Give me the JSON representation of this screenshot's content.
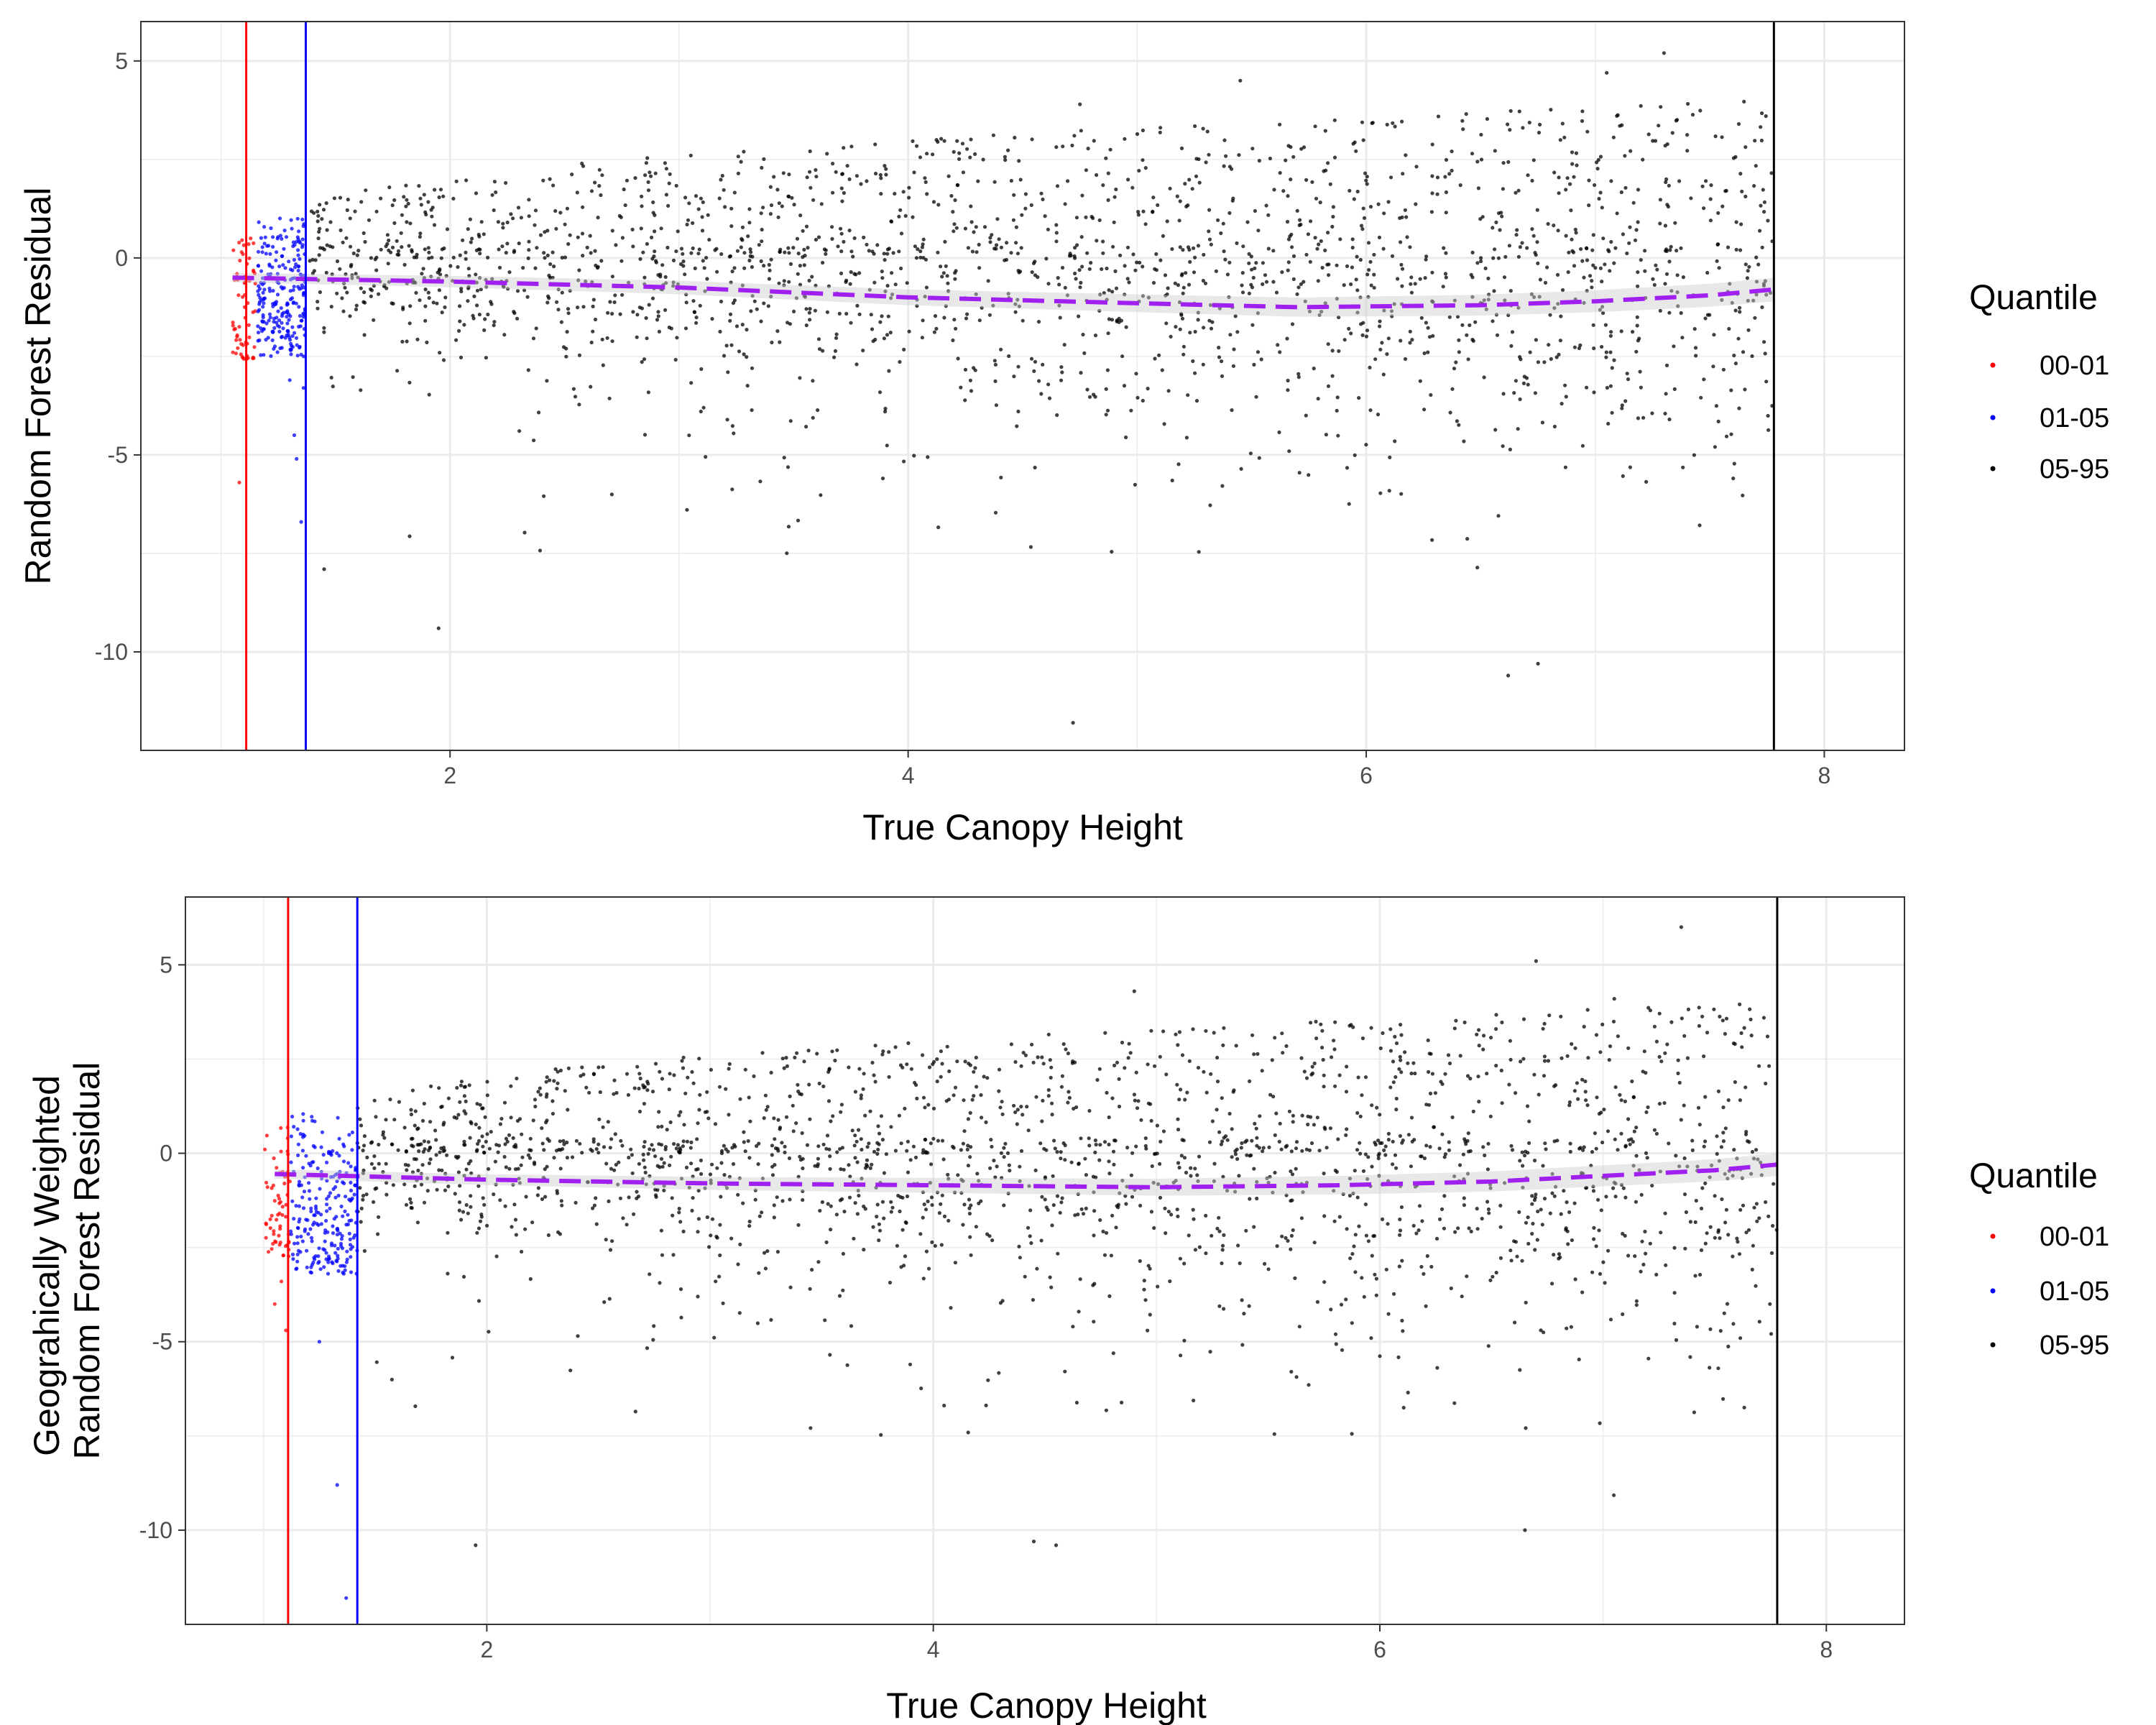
{
  "chart_data": [
    {
      "type": "scatter",
      "xlabel": "True Canopy Height",
      "ylabel": [
        "Random Forest Residual"
      ],
      "xlim": [
        0.65,
        8.35
      ],
      "ylim": [
        -12.5,
        6.0
      ],
      "x_ticks": [
        2,
        4,
        6,
        8
      ],
      "x_tick_labels": [
        "2",
        "4",
        "6",
        "8"
      ],
      "y_ticks": [
        5,
        0,
        -5,
        -10
      ],
      "y_tick_labels": [
        "5",
        "0",
        "-5",
        "-10"
      ],
      "grid": true,
      "legend": {
        "title": "Quantile",
        "position": "right",
        "entries": [
          "00-01",
          "01-05",
          "05-95"
        ]
      },
      "series": [
        {
          "name": "00-01",
          "color": "#ff0000",
          "x_range": [
            1.05,
            1.15
          ],
          "y_range": [
            -2.6,
            1.0
          ],
          "outliers": [
            [
              1.08,
              -5.7
            ]
          ],
          "count": 60
        },
        {
          "name": "01-05",
          "color": "#0000ff",
          "x_range": [
            1.16,
            1.37
          ],
          "y_range": [
            -2.5,
            1.1
          ],
          "outliers": [
            [
              1.3,
              -3.1
            ],
            [
              1.32,
              -4.5
            ],
            [
              1.33,
              -5.1
            ],
            [
              1.35,
              -6.7
            ],
            [
              1.36,
              -3.3
            ]
          ],
          "count": 230
        },
        {
          "name": "05-95",
          "color": "#000000",
          "x_range": [
            1.38,
            7.78
          ],
          "count": 2000,
          "notable_points": [
            [
              1.45,
              -7.9
            ],
            [
              1.95,
              -9.4
            ],
            [
              4.72,
              -11.8
            ],
            [
              6.62,
              -10.6
            ],
            [
              6.75,
              -10.3
            ],
            [
              7.3,
              5.2
            ],
            [
              5.45,
              4.5
            ],
            [
              4.75,
              3.9
            ],
            [
              7.05,
              4.7
            ]
          ]
        }
      ],
      "trend": {
        "color": "#a020f0",
        "style": "dashed",
        "x": [
          1.05,
          2.0,
          3.0,
          4.0,
          5.0,
          5.7,
          6.5,
          7.0,
          7.5,
          7.78
        ],
        "y": [
          -0.5,
          -0.6,
          -0.75,
          -1.0,
          -1.15,
          -1.25,
          -1.2,
          -1.1,
          -0.95,
          -0.8
        ]
      },
      "vlines": [
        {
          "x": 1.11,
          "color": "#ff0000"
        },
        {
          "x": 1.37,
          "color": "#0000ff"
        },
        {
          "x": 7.78,
          "color": "#000000"
        }
      ]
    },
    {
      "type": "scatter",
      "xlabel": "True Canopy Height",
      "ylabel": [
        "Geograhically Weighted",
        "Random Forest Residual"
      ],
      "xlim": [
        0.65,
        8.35
      ],
      "ylim": [
        -12.5,
        6.8
      ],
      "x_ticks": [
        2,
        4,
        6,
        8
      ],
      "x_tick_labels": [
        "2",
        "4",
        "6",
        "8"
      ],
      "y_ticks": [
        5,
        0,
        -5,
        -10
      ],
      "y_tick_labels": [
        "5",
        "0",
        "-5",
        "-10"
      ],
      "grid": true,
      "legend": {
        "title": "Quantile",
        "position": "right",
        "entries": [
          "00-01",
          "01-05",
          "05-95"
        ]
      },
      "series": [
        {
          "name": "00-01",
          "color": "#ff0000",
          "x_range": [
            1.0,
            1.12
          ],
          "y_range": [
            -2.8,
            0.9
          ],
          "outliers": [
            [
              1.05,
              -4.0
            ],
            [
              1.08,
              -3.4
            ],
            [
              1.1,
              -4.7
            ]
          ],
          "count": 60
        },
        {
          "name": "01-05",
          "color": "#0000ff",
          "x_range": [
            1.12,
            1.42
          ],
          "y_range": [
            -3.2,
            1.1
          ],
          "outliers": [
            [
              1.25,
              -5.0
            ],
            [
              1.33,
              -8.8
            ],
            [
              1.37,
              -11.8
            ]
          ],
          "count": 230
        },
        {
          "name": "05-95",
          "color": "#000000",
          "x_range": [
            1.42,
            7.78
          ],
          "count": 2000,
          "notable_points": [
            [
              1.95,
              -10.4
            ],
            [
              4.45,
              -10.3
            ],
            [
              4.55,
              -10.4
            ],
            [
              6.65,
              -10.0
            ],
            [
              7.35,
              6.0
            ],
            [
              6.7,
              5.1
            ],
            [
              4.9,
              4.3
            ],
            [
              7.05,
              4.1
            ]
          ]
        }
      ],
      "trend": {
        "color": "#a020f0",
        "style": "dashed",
        "x": [
          1.05,
          2.0,
          3.0,
          4.0,
          5.0,
          5.8,
          6.5,
          7.0,
          7.5,
          7.78
        ],
        "y": [
          -0.55,
          -0.7,
          -0.8,
          -0.85,
          -0.9,
          -0.85,
          -0.75,
          -0.6,
          -0.45,
          -0.3
        ]
      },
      "vlines": [
        {
          "x": 1.11,
          "color": "#ff0000"
        },
        {
          "x": 1.42,
          "color": "#0000ff"
        },
        {
          "x": 7.78,
          "color": "#000000"
        }
      ]
    }
  ]
}
